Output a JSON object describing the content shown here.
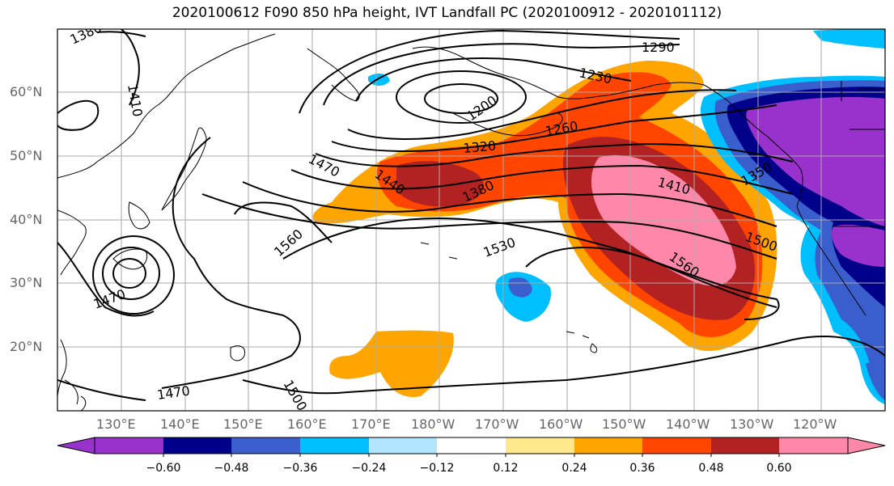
{
  "title": "2020100612 F090 850 hPa height, IVT Landfall PC (2020100912 - 2020101112)",
  "axes": {
    "lat_labels": [
      "60°N",
      "50°N",
      "40°N",
      "30°N",
      "20°N"
    ],
    "lon_labels": [
      "130°E",
      "140°E",
      "150°E",
      "160°E",
      "170°E",
      "180°W",
      "170°W",
      "160°W",
      "150°W",
      "140°W",
      "130°W",
      "120°W"
    ]
  },
  "contour_labels": [
    "1380",
    "1410",
    "1200",
    "1230",
    "1290",
    "1260",
    "1320",
    "1350",
    "1410",
    "1470",
    "1440",
    "1380",
    "1560",
    "1530",
    "1500",
    "1560",
    "1470",
    "1500",
    "1470"
  ],
  "colorbar": {
    "colors": [
      "#9932cc",
      "#00008b",
      "#3a5fcd",
      "#00bfff",
      "#b2e5ff",
      "#ffffff",
      "#ffe98c",
      "#ffa500",
      "#ff4500",
      "#b22222",
      "#ff88aa"
    ],
    "tick_labels": [
      "−0.60",
      "−0.48",
      "−0.36",
      "−0.24",
      "−0.12",
      "0.12",
      "0.24",
      "0.36",
      "0.48",
      "0.60"
    ]
  }
}
